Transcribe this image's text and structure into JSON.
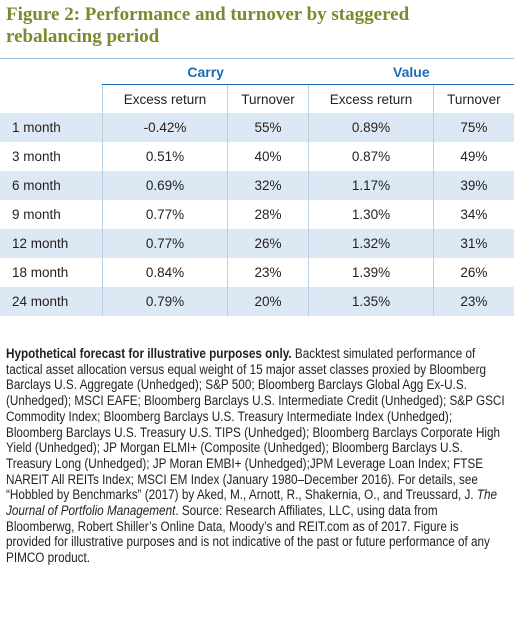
{
  "header": {
    "title": "Figure 2: Performance and turnover by staggered rebalancing period"
  },
  "table": {
    "groups": [
      "Carry",
      "Value"
    ],
    "columns": [
      "Excess return",
      "Turnover",
      "Excess return",
      "Turnover"
    ],
    "rows": [
      [
        "1 month",
        "-0.42%",
        "55%",
        "0.89%",
        "75%"
      ],
      [
        "3 month",
        "0.51%",
        "40%",
        "0.87%",
        "49%"
      ],
      [
        "6 month",
        "0.69%",
        "32%",
        "1.17%",
        "39%"
      ],
      [
        "9 month",
        "0.77%",
        "28%",
        "1.30%",
        "34%"
      ],
      [
        "12 month",
        "0.77%",
        "26%",
        "1.32%",
        "31%"
      ],
      [
        "18 month",
        "0.84%",
        "23%",
        "1.39%",
        "26%"
      ],
      [
        "24 month",
        "0.79%",
        "20%",
        "1.35%",
        "23%"
      ]
    ]
  },
  "footnote": {
    "bold": "Hypothetical forecast for illustrative purposes only.",
    "text": "Backtest simulated performance of tactical asset allocation versus equal weight of 15 major asset classes proxied by Bloomberg Barclays U.S. Aggregate (Unhedged); S&P 500; Bloomberg Barclays Global Agg Ex-U.S. (Unhedged); MSCI EAFE; Bloomberg Barclays U.S. Intermediate Credit (Unhedged); S&P GSCI Commodity Index; Bloomberg Barclays U.S. Treasury Intermediate Index (Unhedged); Bloomberg Barclays U.S. Treasury U.S. TIPS (Unhedged); Bloomberg Barclays Corporate High Yield (Unhedged); JP Morgan ELMI+ (Composite (Unhedged); Bloomberg Barclays U.S. Treasury Long (Unhedged); JP Moran EMBI+ (Unhedged);JPM Leverage Loan Index; FTSE NAREIT All REITs Index; MSCI EM Index (January 1980–December 2016). For details, see “Hobbled by Benchmarks” (2017) by Aked, M., Arnott, R., Shakernia, O., and Treussard, J.",
    "italic": "The Journal of Portfolio Management",
    "rest": ". Source: Research Affiliates, LLC, using data from Bloomberwg, Robert Shiller’s Online Data, Moody’s and REIT.com as of 2017. Figure is provided for illustrative purposes and is not indicative of the past or future performance of any PIMCO product."
  }
}
